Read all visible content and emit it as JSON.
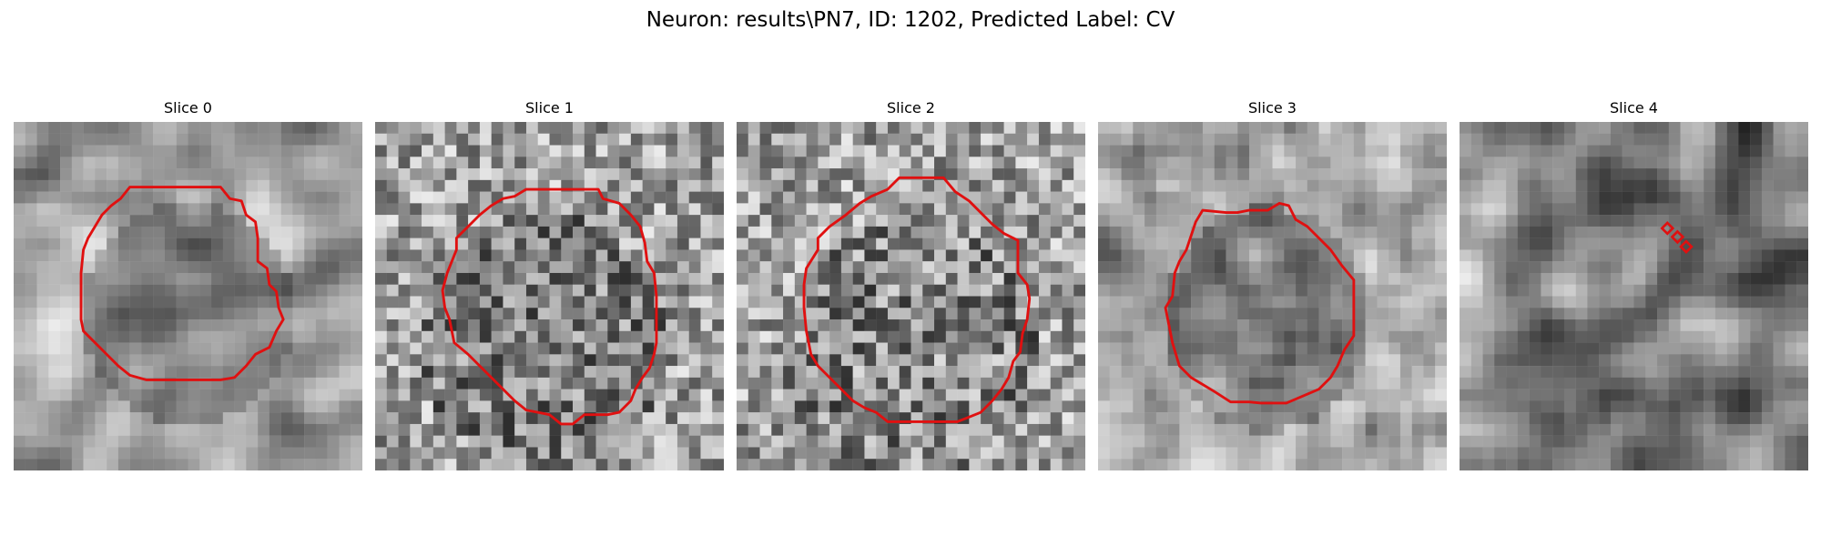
{
  "figure": {
    "title": "Neuron: results\\PN7, ID: 1202, Predicted Label: CV",
    "contour_color": "#e01010",
    "image_colormap": "gray"
  },
  "panels": [
    {
      "title": "Slice 0",
      "content": "grayscale-patch-with-contour"
    },
    {
      "title": "Slice 1",
      "content": "grayscale-patch-with-contour"
    },
    {
      "title": "Slice 2",
      "content": "grayscale-patch-with-contour"
    },
    {
      "title": "Slice 3",
      "content": "grayscale-patch-with-contour"
    },
    {
      "title": "Slice 4",
      "content": "grayscale-patch-with-small-markers"
    }
  ]
}
